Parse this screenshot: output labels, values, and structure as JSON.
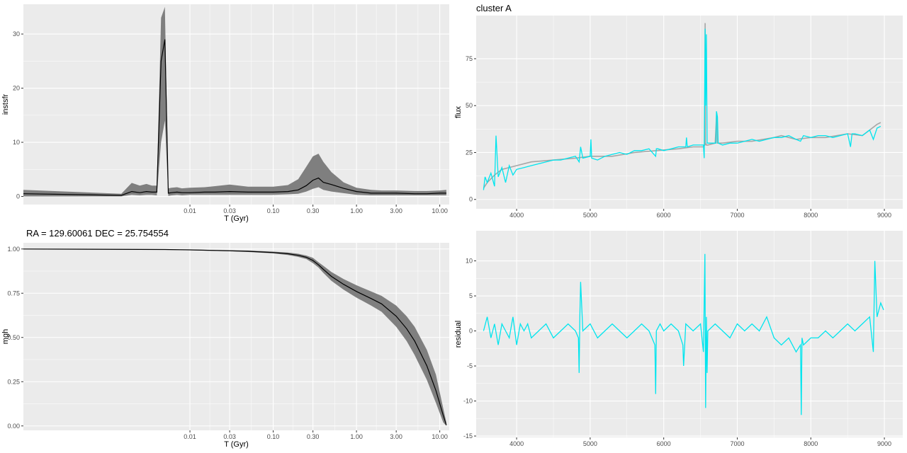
{
  "colors": {
    "panel_bg": "#ebebeb",
    "grid": "#ffffff",
    "ribbon": "#7f7f7f",
    "median": "#000000",
    "model": "#a6a6a6",
    "observed": "#00e5ee",
    "tick_text": "#4d4d4d"
  },
  "chart_data": [
    {
      "id": "p1",
      "type": "area",
      "title": "",
      "xlabel": "T (Gyr)",
      "ylabel": "instsfr",
      "xscale": "log",
      "xlim": [
        0.0001,
        13
      ],
      "ylim": [
        -1.5,
        35.5
      ],
      "xticks": [
        0.01,
        0.03,
        0.1,
        0.3,
        1.0,
        3.0,
        10.0
      ],
      "xtick_labels": [
        "0.01",
        "0.03",
        "0.10",
        "0.30",
        "1.00",
        "3.00",
        "10.00"
      ],
      "yticks": [
        0,
        10,
        20,
        30
      ],
      "ytick_labels": [
        "0",
        "10",
        "20",
        "30"
      ],
      "grid": true,
      "legend": "none",
      "series": [
        {
          "x": [
            0.0001,
            0.0015,
            0.002,
            0.0025,
            0.003,
            0.0035,
            0.004,
            0.0045,
            0.005,
            0.0055,
            0.006,
            0.007,
            0.008,
            0.01,
            0.015,
            0.02,
            0.03,
            0.05,
            0.1,
            0.15,
            0.2,
            0.25,
            0.3,
            0.35,
            0.4,
            0.5,
            0.7,
            1.0,
            1.5,
            2,
            3,
            5,
            7,
            10,
            12
          ],
          "y": [
            0.5,
            0.2,
            0.9,
            0.7,
            0.9,
            0.8,
            0.8,
            25,
            29,
            0.6,
            0.7,
            0.8,
            0.7,
            0.7,
            0.8,
            0.8,
            0.9,
            0.8,
            0.8,
            0.9,
            1.2,
            2.0,
            3.0,
            3.4,
            2.6,
            2.2,
            1.5,
            0.9,
            0.6,
            0.6,
            0.6,
            0.5,
            0.5,
            0.6,
            0.6
          ],
          "lower": [
            0,
            0,
            0.3,
            0.2,
            0.3,
            0.3,
            0.2,
            10,
            14,
            0.1,
            0.2,
            0.3,
            0.2,
            0.3,
            0.3,
            0.3,
            0.3,
            0.3,
            0.3,
            0.4,
            0.5,
            0.9,
            1.4,
            1.7,
            1.2,
            0.9,
            0.6,
            0.3,
            0.2,
            0.2,
            0.2,
            0.2,
            0.2,
            0.2,
            0.2
          ],
          "upper": [
            1.2,
            0.5,
            2.5,
            2.0,
            2.3,
            2.0,
            2.0,
            33,
            35,
            1.5,
            1.6,
            1.7,
            1.5,
            1.6,
            1.7,
            1.9,
            2.2,
            1.8,
            1.8,
            2.1,
            3.2,
            5.5,
            7.4,
            7.9,
            6.4,
            4.5,
            2.6,
            1.6,
            1.2,
            1.1,
            1.1,
            1.0,
            1.0,
            1.1,
            1.2
          ]
        }
      ]
    },
    {
      "id": "p2",
      "type": "line",
      "title": "cluster A",
      "xlabel": "",
      "ylabel": "flux",
      "xlim": [
        3450,
        9250
      ],
      "ylim": [
        -5,
        98
      ],
      "xticks": [
        4000,
        5000,
        6000,
        7000,
        8000,
        9000
      ],
      "xtick_labels": [
        "4000",
        "5000",
        "6000",
        "7000",
        "8000",
        "9000"
      ],
      "yticks": [
        0,
        25,
        50,
        75
      ],
      "ytick_labels": [
        "0",
        "25",
        "50",
        "75"
      ],
      "grid": true,
      "legend": "none",
      "series": [
        {
          "style": "model",
          "x": [
            3550,
            3600,
            3700,
            3800,
            4000,
            4200,
            4500,
            4800,
            5000,
            5300,
            5600,
            5900,
            6200,
            6400,
            6540,
            6560,
            6563,
            6566,
            6580,
            6600,
            6700,
            6720,
            6730,
            6800,
            7000,
            7200,
            7500,
            7600,
            7800,
            8000,
            8200,
            8500,
            8700,
            8800,
            8900,
            8950
          ],
          "y": [
            6,
            9,
            13,
            16,
            18,
            20,
            21,
            22,
            23,
            23,
            25,
            26,
            27,
            28,
            28,
            29,
            94,
            30,
            29,
            29,
            30,
            46,
            30,
            30,
            31,
            31,
            33,
            34,
            32,
            33,
            33,
            35,
            34,
            37,
            40,
            41
          ]
        },
        {
          "style": "observed",
          "x": [
            3550,
            3570,
            3600,
            3650,
            3700,
            3720,
            3750,
            3800,
            3850,
            3900,
            3950,
            4000,
            4100,
            4200,
            4300,
            4400,
            4500,
            4600,
            4700,
            4800,
            4850,
            4870,
            4900,
            5000,
            5010,
            5020,
            5100,
            5200,
            5300,
            5400,
            5500,
            5600,
            5700,
            5800,
            5890,
            5900,
            5920,
            6000,
            6100,
            6200,
            6300,
            6310,
            6320,
            6400,
            6500,
            6540,
            6550,
            6563,
            6570,
            6580,
            6590,
            6600,
            6700,
            6710,
            6717,
            6731,
            6740,
            6800,
            6900,
            7000,
            7100,
            7200,
            7300,
            7400,
            7500,
            7600,
            7700,
            7800,
            7860,
            7900,
            8000,
            8100,
            8200,
            8300,
            8400,
            8500,
            8540,
            8560,
            8600,
            8700,
            8800,
            8850,
            8900,
            8950
          ],
          "y": [
            5,
            12,
            9,
            14,
            7,
            34,
            12,
            17,
            9,
            18,
            13,
            16,
            17,
            18,
            19,
            20,
            21,
            21,
            22,
            23,
            20,
            28,
            22,
            23,
            32,
            22,
            21,
            23,
            24,
            25,
            24,
            26,
            26,
            27,
            23,
            27,
            27,
            26,
            27,
            28,
            28,
            33,
            28,
            29,
            29,
            29,
            22,
            91,
            50,
            88,
            30,
            30,
            30,
            30,
            47,
            44,
            30,
            29,
            30,
            30,
            31,
            32,
            31,
            32,
            33,
            33,
            34,
            32,
            31,
            34,
            33,
            34,
            34,
            33,
            34,
            35,
            28,
            35,
            35,
            34,
            37,
            32,
            38,
            39
          ]
        }
      ]
    },
    {
      "id": "p3",
      "type": "area",
      "title": "RA = 129.60061  DEC = 25.754554",
      "xlabel": "T (Gyr)",
      "ylabel": "mgh",
      "xscale": "log",
      "xlim": [
        0.0001,
        13
      ],
      "ylim": [
        -0.025,
        1.035
      ],
      "xticks": [
        0.01,
        0.03,
        0.1,
        0.3,
        1.0,
        3.0,
        10.0
      ],
      "xtick_labels": [
        "0.01",
        "0.03",
        "0.10",
        "0.30",
        "1.00",
        "3.00",
        "10.00"
      ],
      "yticks": [
        0,
        0.25,
        0.5,
        0.75,
        1
      ],
      "ytick_labels": [
        "0.00",
        "0.25",
        "0.50",
        "0.75",
        "1.00"
      ],
      "grid": true,
      "legend": "none",
      "series": [
        {
          "x": [
            0.0001,
            0.005,
            0.01,
            0.03,
            0.05,
            0.1,
            0.15,
            0.2,
            0.25,
            0.3,
            0.35,
            0.4,
            0.5,
            0.7,
            1.0,
            1.5,
            2,
            3,
            4,
            5,
            7,
            9,
            11,
            12
          ],
          "y": [
            1.0,
            0.997,
            0.995,
            0.99,
            0.987,
            0.98,
            0.973,
            0.964,
            0.953,
            0.935,
            0.91,
            0.885,
            0.845,
            0.8,
            0.76,
            0.72,
            0.69,
            0.62,
            0.55,
            0.48,
            0.34,
            0.2,
            0.06,
            0.005
          ],
          "lower": [
            1.0,
            0.995,
            0.993,
            0.987,
            0.983,
            0.975,
            0.966,
            0.955,
            0.943,
            0.92,
            0.895,
            0.865,
            0.82,
            0.77,
            0.725,
            0.68,
            0.645,
            0.56,
            0.48,
            0.4,
            0.26,
            0.13,
            0.02,
            0.0
          ],
          "upper": [
            1.0,
            0.999,
            0.997,
            0.993,
            0.991,
            0.985,
            0.98,
            0.973,
            0.963,
            0.95,
            0.925,
            0.905,
            0.87,
            0.83,
            0.795,
            0.76,
            0.735,
            0.68,
            0.62,
            0.56,
            0.43,
            0.29,
            0.1,
            0.02
          ]
        }
      ]
    },
    {
      "id": "p4",
      "type": "line",
      "title": "",
      "xlabel": "",
      "ylabel": "residual",
      "xlim": [
        3450,
        9250
      ],
      "ylim": [
        -15.2,
        14.3
      ],
      "xticks": [
        4000,
        5000,
        6000,
        7000,
        8000,
        9000
      ],
      "xtick_labels": [
        "4000",
        "5000",
        "6000",
        "7000",
        "8000",
        "9000"
      ],
      "yticks": [
        -15,
        -10,
        -5,
        0,
        5,
        10
      ],
      "ytick_labels": [
        "-15",
        "-10",
        "-5",
        "0",
        "5",
        "10"
      ],
      "grid": true,
      "legend": "none",
      "series": [
        {
          "style": "observed",
          "x": [
            3550,
            3600,
            3650,
            3700,
            3750,
            3800,
            3850,
            3900,
            3950,
            4000,
            4050,
            4100,
            4150,
            4200,
            4300,
            4400,
            4500,
            4600,
            4700,
            4800,
            4840,
            4850,
            4860,
            4870,
            4900,
            5000,
            5100,
            5200,
            5300,
            5400,
            5500,
            5600,
            5700,
            5800,
            5880,
            5890,
            5900,
            5950,
            6000,
            6100,
            6200,
            6260,
            6270,
            6300,
            6400,
            6500,
            6540,
            6550,
            6560,
            6570,
            6580,
            6590,
            6600,
            6700,
            6800,
            6900,
            7000,
            7100,
            7200,
            7300,
            7400,
            7500,
            7600,
            7700,
            7800,
            7860,
            7870,
            7880,
            7900,
            8000,
            8100,
            8200,
            8300,
            8400,
            8500,
            8600,
            8700,
            8800,
            8850,
            8870,
            8900,
            8950,
            8990
          ],
          "y": [
            0,
            2,
            -1,
            1,
            -2,
            1,
            0,
            -1,
            2,
            -2,
            1,
            0,
            1,
            -1,
            0,
            1,
            -1,
            0,
            1,
            0,
            -1,
            -6,
            2,
            7,
            0,
            1,
            -1,
            0,
            1,
            0,
            -1,
            0,
            1,
            0,
            -2,
            -9,
            0,
            1,
            0,
            1,
            0,
            -2,
            -5,
            1,
            0,
            1,
            -3,
            4,
            11,
            -11,
            2,
            -6,
            0,
            1,
            0,
            -1,
            1,
            0,
            1,
            0,
            2,
            -1,
            -2,
            -1,
            -3,
            -2,
            -12,
            -1,
            -2,
            -1,
            -1,
            0,
            -1,
            0,
            1,
            0,
            1,
            2,
            -3,
            10,
            2,
            4,
            3
          ]
        }
      ]
    }
  ]
}
